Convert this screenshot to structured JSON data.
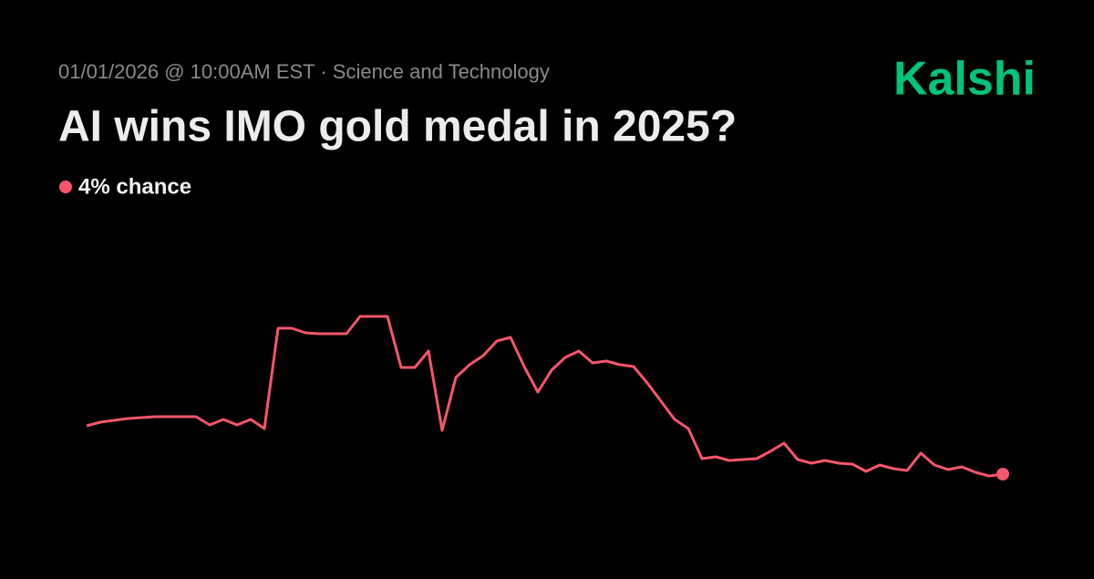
{
  "brand": "Kalshi",
  "chart_data": {
    "type": "line",
    "subtitle": "01/01/2026 @ 10:00AM EST · Science and Technology",
    "title": "AI wins IMO gold medal in 2025?",
    "annotation": "4% chance",
    "color": "#f4566b",
    "ylim": [
      0,
      15
    ],
    "values": [
      6.65,
      6.85,
      6.95,
      7.05,
      7.1,
      7.15,
      7.15,
      7.15,
      7.15,
      6.7,
      7.0,
      6.7,
      7.0,
      6.5,
      12,
      12,
      11.75,
      11.7,
      11.7,
      11.7,
      12.65,
      12.65,
      12.65,
      9.85,
      9.85,
      10.75,
      6.4,
      9.3,
      10,
      10.5,
      11.3,
      11.5,
      9.9,
      8.5,
      9.7,
      10.4,
      10.75,
      10.1,
      10.2,
      10.0,
      9.9,
      9.0,
      8.0,
      7.0,
      6.5,
      4.85,
      4.95,
      4.75,
      4.8,
      4.85,
      5.25,
      5.7,
      4.8,
      4.6,
      4.75,
      4.6,
      4.55,
      4.15,
      4.5,
      4.3,
      4.2,
      5.15,
      4.5,
      4.25,
      4.4,
      4.1,
      3.9,
      4
    ]
  }
}
